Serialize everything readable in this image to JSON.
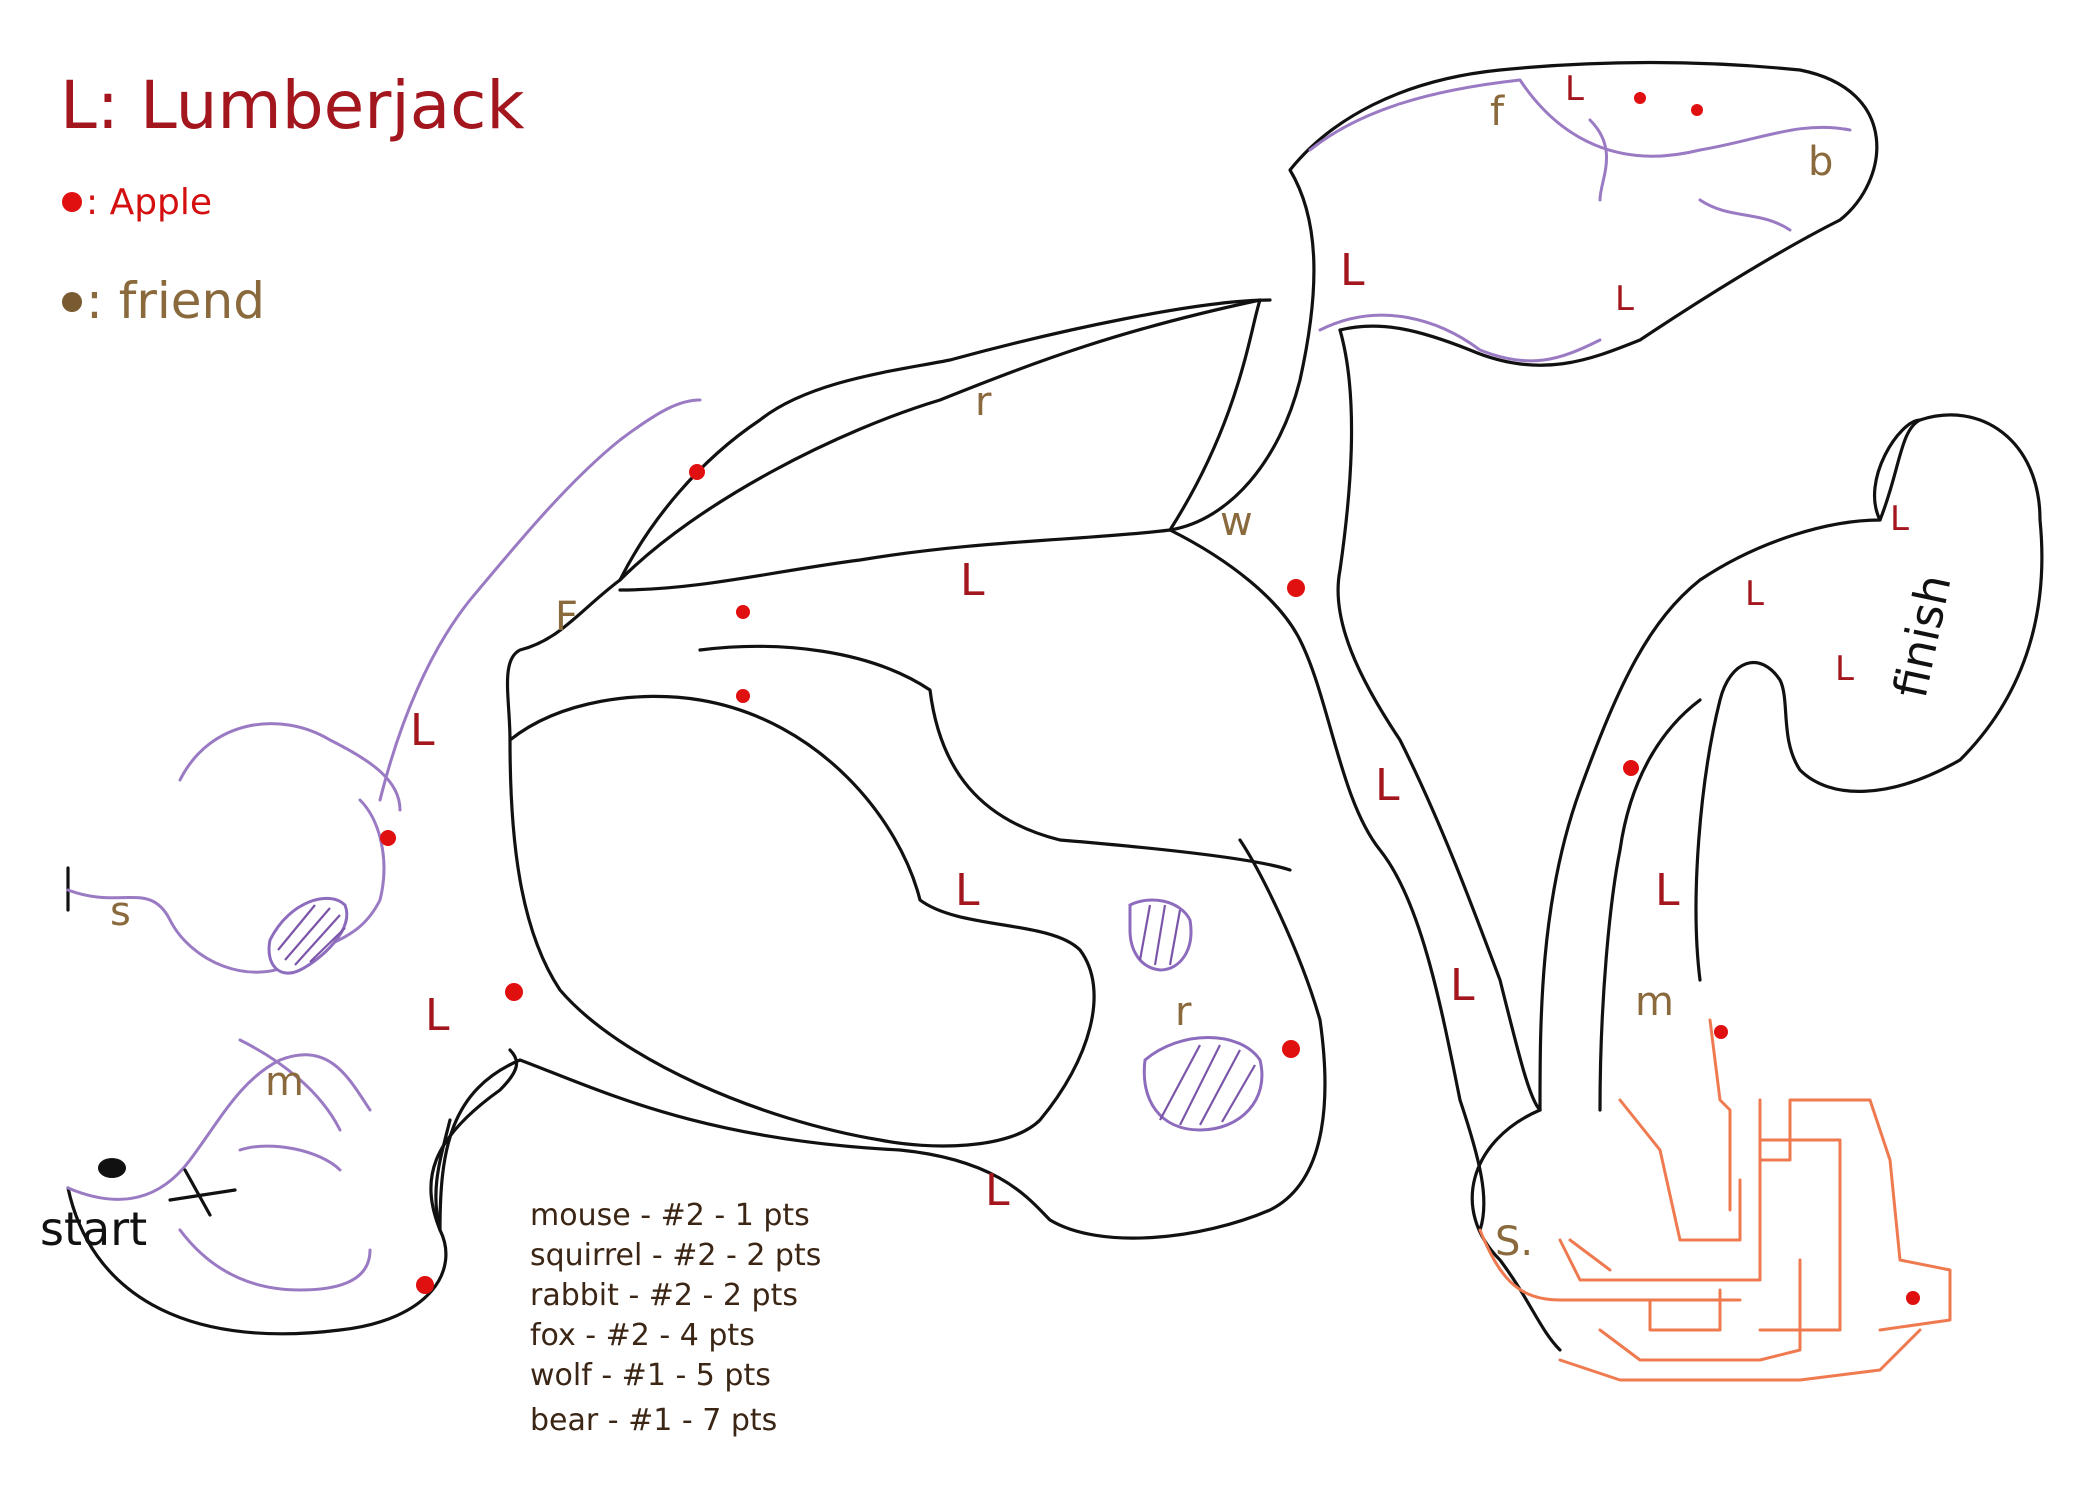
{
  "legend": {
    "lumberjack": "L: Lumberjack",
    "apple": ": Apple",
    "friend": ": friend",
    "apple_color": "#e01010",
    "friend_color": "#7a5a30"
  },
  "path_labels": {
    "start": "start",
    "finish": "finish"
  },
  "friends": [
    "f",
    "r",
    "w",
    "F",
    "s",
    "m",
    "r",
    "m",
    "S.",
    "b"
  ],
  "lumberjack_label": "L",
  "scores": [
    "mouse - #2 - 1 pts",
    "squirrel - #2 - 2 pts",
    "rabbit - #2 - 2 pts",
    "fox - #2 - 4 pts",
    "wolf - #1 - 5 pts",
    "bear - #1 - 7 pts"
  ],
  "colors": {
    "outline": "#111111",
    "purple_trail": "#9b7ac4",
    "orange_maze": "#ef7a50",
    "lumberjack": "#a3161e"
  }
}
